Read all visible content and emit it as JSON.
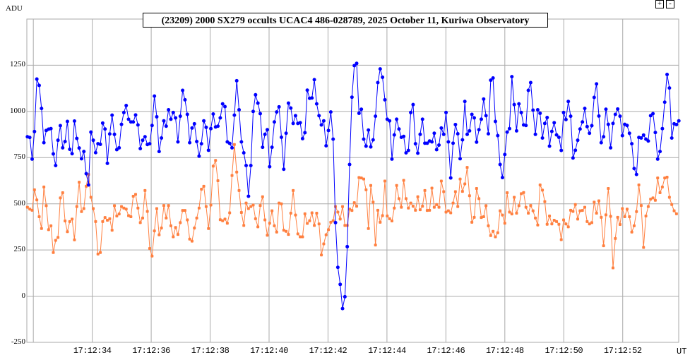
{
  "controls": {
    "zoom_in": "+",
    "zoom_out": "-"
  },
  "chart_data": {
    "type": "line",
    "title": "(23209) 2000 SX279 occults UCAC4 486-028789, 2025 October 11, Kuriwa Observatory",
    "ylabel": "ADU",
    "xlabel": "UT",
    "ylim": [
      -250,
      1500
    ],
    "xlim": [
      "17:12:31.78",
      "17:12:53.90"
    ],
    "yticks": [
      "1250",
      "1000",
      "750",
      "500",
      "250",
      "0",
      "-250"
    ],
    "ytick_values": [
      1250,
      1000,
      750,
      500,
      250,
      0,
      -250
    ],
    "xticks": [
      "17:12:34",
      "17:12:36",
      "17:12:38",
      "17:12:40",
      "17:12:42",
      "17:12:44",
      "17:12:46",
      "17:12:48",
      "17:12:50",
      "17:12:52"
    ],
    "xtick_seconds": [
      34,
      36,
      38,
      40,
      42,
      44,
      46,
      48,
      50,
      52
    ],
    "grid": true,
    "first_sample_second": 31.8,
    "sample_interval_s": 0.0798,
    "series": [
      {
        "color": "#0000ff",
        "marker": "circle",
        "values": [
          863,
          859,
          742,
          891,
          1175,
          1141,
          1016,
          831,
          897,
          904,
          907,
          770,
          707,
          844,
          923,
          803,
          837,
          946,
          795,
          771,
          948,
          854,
          802,
          744,
          783,
          663,
          602,
          888,
          844,
          777,
          825,
          822,
          937,
          905,
          719,
          878,
          980,
          876,
          793,
          803,
          930,
          994,
          1032,
          958,
          943,
          943,
          981,
          927,
          799,
          844,
          863,
          821,
          825,
          924,
          1083,
          971,
          783,
          856,
          949,
          920,
          1009,
          958,
          994,
          965,
          835,
          974,
          1114,
          1063,
          984,
          831,
          910,
          933,
          837,
          758,
          825,
          949,
          914,
          790,
          907,
          986,
          916,
          920,
          965,
          1041,
          1026,
          835,
          827,
          803,
          980,
          1166,
          1009,
          835,
          776,
          707,
          541,
          707,
          1000,
          1090,
          1045,
          988,
          806,
          876,
          901,
          701,
          806,
          943,
          997,
          1025,
          860,
          687,
          882,
          1045,
          1018,
          935,
          977,
          935,
          939,
          853,
          885,
          1115,
          1071,
          1073,
          1172,
          1041,
          977,
          927,
          949,
          814,
          897,
          997,
          850,
          398,
          156,
          64,
          -67,
          -3,
          268,
          713,
          1077,
          1248,
          1260,
          990,
          1012,
          850,
          812,
          899,
          808,
          846,
          974,
          1156,
          1230,
          1185,
          1063,
          958,
          949,
          742,
          873,
          958,
          905,
          860,
          865,
          776,
          789,
          994,
          1037,
          825,
          774,
          876,
          958,
          828,
          828,
          840,
          835,
          882,
          793,
          818,
          910,
          876,
          994,
          835,
          640,
          828,
          929,
          879,
          744,
          846,
          1054,
          876,
          895,
          984,
          965,
          834,
          901,
          958,
          1067,
          977,
          879,
          1169,
          1181,
          946,
          869,
          713,
          642,
          767,
          888,
          907,
          1188,
          1037,
          895,
          1041,
          994,
          927,
          924,
          1114,
          1156,
          1007,
          876,
          1009,
          990,
          856,
          935,
          967,
          812,
          892,
          939,
          873,
          860,
          789,
          994,
          956,
          1054,
          974,
          748,
          790,
          844,
          905,
          943,
          1016,
          918,
          882,
          923,
          1076,
          1149,
          975,
          831,
          863,
          1012,
          930,
          803,
          935,
          984,
          1013,
          974,
          869,
          930,
          924,
          882,
          825,
          691,
          659,
          859,
          856,
          872,
          850,
          840,
          977,
          988,
          886,
          742,
          783,
          907,
          1050,
          1200,
          1127,
          856,
          933,
          929,
          949
        ]
      },
      {
        "color": "#ff8040",
        "marker": "square",
        "values": [
          481,
          471,
          465,
          576,
          521,
          430,
          366,
          591,
          490,
          360,
          381,
          236,
          302,
          318,
          532,
          560,
          407,
          349,
          404,
          417,
          305,
          485,
          617,
          458,
          474,
          595,
          659,
          535,
          474,
          404,
          228,
          236,
          404,
          426,
          411,
          419,
          357,
          490,
          434,
          445,
          485,
          477,
          471,
          436,
          430,
          541,
          551,
          477,
          398,
          423,
          572,
          459,
          258,
          217,
          353,
          474,
          332,
          369,
          491,
          423,
          491,
          381,
          321,
          372,
          334,
          398,
          464,
          464,
          413,
          309,
          298,
          369,
          423,
          477,
          579,
          595,
          485,
          366,
          493,
          704,
          735,
          625,
          414,
          408,
          417,
          395,
          451,
          653,
          821,
          672,
          572,
          453,
          383,
          504,
          474,
          485,
          493,
          419,
          375,
          491,
          538,
          413,
          330,
          395,
          462,
          381,
          347,
          504,
          500,
          357,
          351,
          334,
          449,
          572,
          439,
          337,
          321,
          321,
          446,
          394,
          408,
          451,
          383,
          449,
          391,
          223,
          283,
          332,
          360,
          400,
          408,
          485,
          455,
          417,
          485,
          383,
          383,
          471,
          464,
          506,
          487,
          642,
          640,
          634,
          576,
          366,
          599,
          509,
          277,
          465,
          400,
          436,
          623,
          434,
          419,
          407,
          477,
          599,
          528,
          481,
          627,
          528,
          477,
          504,
          487,
          465,
          538,
          468,
          487,
          572,
          464,
          465,
          585,
          481,
          496,
          481,
          623,
          566,
          455,
          462,
          451,
          504,
          566,
          485,
          634,
          567,
          608,
          697,
          544,
          400,
          427,
          583,
          528,
          426,
          430,
          490,
          381,
          328,
          351,
          321,
          343,
          462,
          439,
          395,
          560,
          455,
          445,
          535,
          449,
          490,
          555,
          561,
          481,
          449,
          491,
          462,
          423,
          385,
          602,
          574,
          512,
          389,
          434,
          391,
          411,
          404,
          389,
          306,
          413,
          391,
          375,
          465,
          459,
          496,
          417,
          462,
          464,
          481,
          404,
          391,
          398,
          509,
          449,
          516,
          427,
          273,
          440,
          583,
          432,
          153,
          312,
          427,
          388,
          474,
          430,
          471,
          430,
          347,
          381,
          458,
          602,
          491,
          264,
          434,
          485,
          525,
          532,
          519,
          640,
          560,
          591,
          640,
          644,
          535,
          496,
          462,
          446
        ]
      }
    ]
  }
}
